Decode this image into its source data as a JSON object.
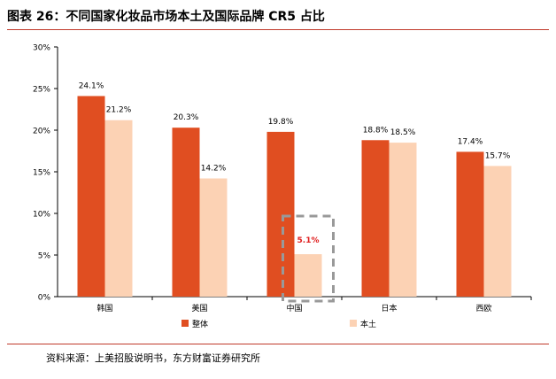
{
  "title": "图表 26：不同国家化妆品市场本土及国际品牌 CR5 占比",
  "source": "资料来源：上美招股说明书，东方财富证券研究所",
  "colors": {
    "series1": "#e04e21",
    "series2": "#fcd2b4",
    "axis": "#000000",
    "highlight_label": "#e02020",
    "highlight_box": "#999999"
  },
  "chart_data": {
    "type": "bar",
    "categories": [
      "韩国",
      "美国",
      "中国",
      "日本",
      "西欧"
    ],
    "series": [
      {
        "name": "整体",
        "values": [
          24.1,
          20.3,
          19.8,
          18.8,
          17.4
        ],
        "labels": [
          "24.1%",
          "20.3%",
          "19.8%",
          "18.8%",
          "17.4%"
        ]
      },
      {
        "name": "本土",
        "values": [
          21.2,
          14.2,
          5.1,
          18.5,
          15.7
        ],
        "labels": [
          "21.2%",
          "14.2%",
          "5.1%",
          "18.5%",
          "15.7%"
        ]
      }
    ],
    "yticks": [
      "0%",
      "5%",
      "10%",
      "15%",
      "20%",
      "25%",
      "30%"
    ],
    "ylim": [
      0,
      30
    ],
    "highlight": {
      "category": "中国",
      "series": "本土"
    },
    "legend": "bottom",
    "grid": false
  }
}
